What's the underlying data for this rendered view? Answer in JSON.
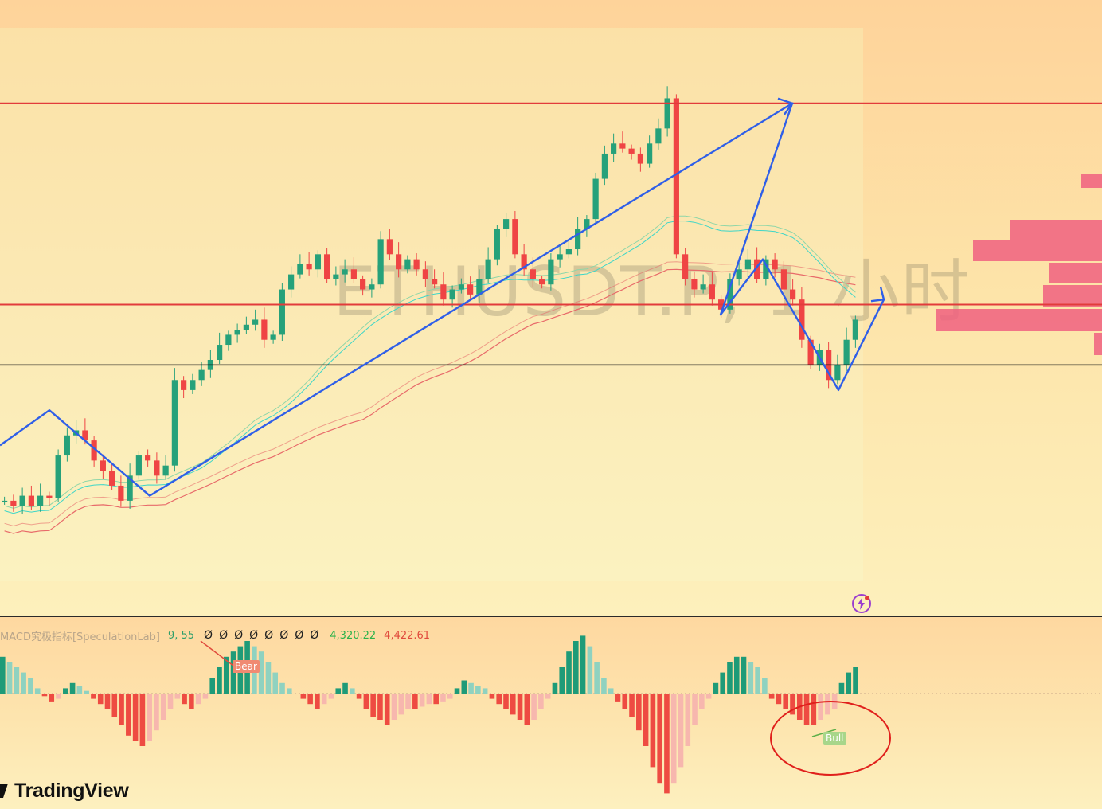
{
  "watermark": "ETHUSDT.P, 1 小时",
  "indicator": {
    "name": "MACD究极指标[SpeculationLab]",
    "params": "9, 55",
    "na_values": [
      "Ø",
      "Ø",
      "Ø",
      "Ø",
      "Ø",
      "Ø",
      "Ø",
      "Ø"
    ],
    "value_a": "4,320.22",
    "value_b": "4,422.61",
    "bear_label": "Bear",
    "bull_label": "Bull"
  },
  "branding": {
    "logo_text": "TradingView"
  },
  "colors": {
    "up": "#26a17a",
    "down": "#ef4444",
    "resistance": "#e23b3b",
    "support": "#111111",
    "trend": "#2f5fe8",
    "ma_cyan": "#3dd6c8",
    "ma_green": "#8fd6a8",
    "ma_red": "#e86a6a",
    "volume_profile": "#f06080",
    "macd_up_strong": "#1e9b78",
    "macd_up_weak": "#8fd2c0",
    "macd_down_strong": "#ee4b42",
    "macd_down_weak": "#f7b7ae"
  },
  "chart_data": [
    {
      "type": "candlestick",
      "title": "ETHUSDT.P, 1 小时",
      "timeframe": "1h",
      "horizontal_levels": [
        {
          "kind": "resistance",
          "value": 4950
        },
        {
          "kind": "resistance",
          "value": 4550
        },
        {
          "kind": "support",
          "value": 4430
        }
      ],
      "close_path": [
        4160,
        4150,
        4170,
        4150,
        4170,
        4165,
        4250,
        4290,
        4300,
        4280,
        4240,
        4220,
        4190,
        4160,
        4210,
        4250,
        4240,
        4210,
        4230,
        4400,
        4380,
        4400,
        4420,
        4440,
        4470,
        4490,
        4500,
        4510,
        4520,
        4480,
        4490,
        4580,
        4610,
        4630,
        4620,
        4650,
        4600,
        4610,
        4620,
        4600,
        4580,
        4590,
        4680,
        4650,
        4620,
        4640,
        4620,
        4600,
        4590,
        4560,
        4580,
        4590,
        4570,
        4600,
        4640,
        4700,
        4720,
        4650,
        4620,
        4600,
        4590,
        4640,
        4650,
        4660,
        4700,
        4720,
        4800,
        4850,
        4870,
        4860,
        4850,
        4830,
        4870,
        4900,
        4960,
        4650,
        4600,
        4580,
        4590,
        4560,
        4540,
        4600,
        4620,
        4640,
        4600,
        4640,
        4620,
        4580,
        4560,
        4480,
        4430,
        4460,
        4400,
        4430,
        4480,
        4520
      ],
      "trend_path": {
        "description": "blue swing path drawn on chart",
        "points": [
          4270,
          4340,
          4170,
          4950,
          4530,
          4640,
          4380,
          4560
        ]
      },
      "volume_profile_rows": 6
    },
    {
      "type": "bar",
      "title": "MACD究极指标[SpeculationLab]",
      "params": [
        9,
        55
      ],
      "values": [
        14,
        12,
        10,
        8,
        6,
        2,
        -1,
        -3,
        -2,
        2,
        4,
        3,
        1,
        -2,
        -4,
        -6,
        -9,
        -12,
        -16,
        -18,
        -20,
        -18,
        -14,
        -10,
        -6,
        -2,
        -4,
        -6,
        -4,
        -2,
        6,
        10,
        14,
        16,
        18,
        20,
        18,
        16,
        12,
        8,
        4,
        2,
        0,
        -2,
        -4,
        -6,
        -4,
        -2,
        2,
        4,
        2,
        -2,
        -6,
        -9,
        -10,
        -12,
        -10,
        -8,
        -6,
        -6,
        -5,
        -4,
        -4,
        -3,
        -2,
        2,
        5,
        4,
        3,
        2,
        -2,
        -4,
        -6,
        -8,
        -10,
        -12,
        -10,
        -6,
        -2,
        4,
        10,
        16,
        20,
        22,
        18,
        12,
        6,
        2,
        -3,
        -6,
        -9,
        -14,
        -20,
        -28,
        -34,
        -38,
        -34,
        -28,
        -20,
        -12,
        -6,
        -2,
        4,
        8,
        12,
        14,
        14,
        12,
        10,
        6,
        -2,
        -4,
        -6,
        -8,
        -10,
        -12,
        -12,
        -10,
        -8,
        -6,
        4,
        8,
        10
      ],
      "signals": [
        {
          "label": "Bear"
        },
        {
          "label": "Bull"
        }
      ]
    }
  ]
}
